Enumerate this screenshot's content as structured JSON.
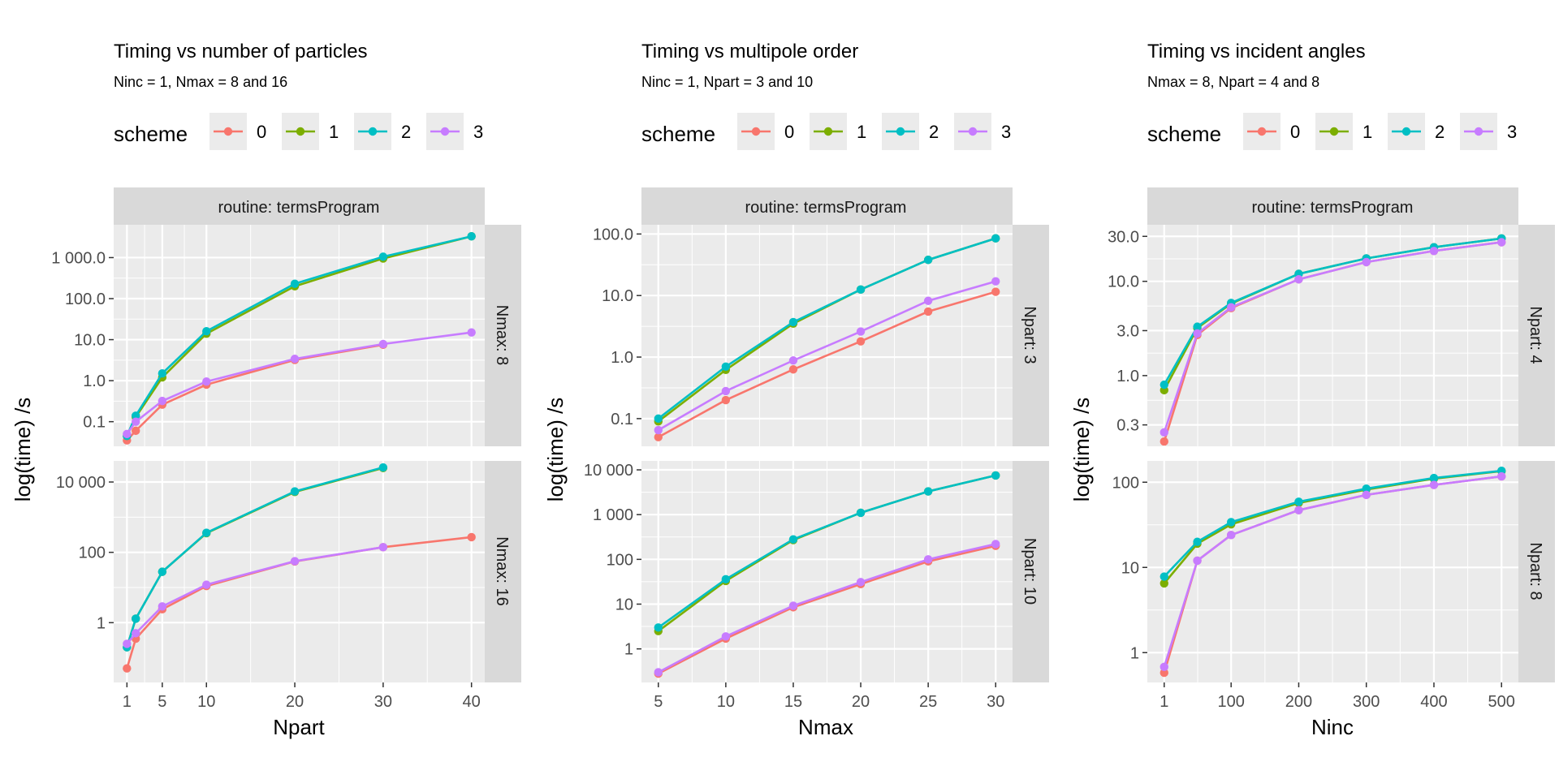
{
  "colors": {
    "scheme_0": "#F8766D",
    "scheme_1": "#7CAE00",
    "scheme_2": "#00BFC4",
    "scheme_3": "#C77CFF",
    "panel_bg": "#EBEBEB",
    "strip_bg": "#D9D9D9",
    "grid": "#FFFFFF"
  },
  "legend": {
    "title": "scheme",
    "keys": [
      "0",
      "1",
      "2",
      "3"
    ]
  },
  "chart_data": [
    {
      "type": "line",
      "title": "Timing vs number of particles",
      "subtitle": "Ninc = 1, Nmax = 8 and 16",
      "xlabel": "Npart",
      "ylabel": "log(time) /s",
      "x_scale": "linear",
      "xlim": [
        -0.5,
        41.5
      ],
      "xticks": [
        1,
        5,
        10,
        20,
        30,
        40
      ],
      "xtick_labels": [
        "1",
        "5",
        "10",
        "20",
        "30",
        "40"
      ],
      "legend_position": "top",
      "grid": true,
      "strip_top": "routine: termsProgram",
      "panels": [
        {
          "strip": "Nmax: 8",
          "y_scale": "log10",
          "ylim_log10": [
            -1.6,
            3.8
          ],
          "yticks": [
            0.1,
            1,
            10,
            100,
            1000
          ],
          "ytick_labels": [
            "0.1",
            "1.0",
            "10.0",
            "100.0",
            "1 000.0"
          ],
          "series": [
            {
              "name": "0",
              "x": [
                1,
                2,
                5,
                10,
                20,
                30
              ],
              "y": [
                0.035,
                0.06,
                0.26,
                0.8,
                3.2,
                7.5
              ]
            },
            {
              "name": "1",
              "x": [
                1,
                2,
                5,
                10,
                20,
                30,
                40
              ],
              "y": [
                0.045,
                0.13,
                1.2,
                14,
                200,
                950,
                3300
              ]
            },
            {
              "name": "2",
              "x": [
                1,
                2,
                5,
                10,
                20,
                30,
                40
              ],
              "y": [
                0.045,
                0.14,
                1.5,
                16,
                230,
                1050,
                3300
              ]
            },
            {
              "name": "3",
              "x": [
                1,
                2,
                5,
                10,
                20,
                30,
                40
              ],
              "y": [
                0.05,
                0.1,
                0.32,
                0.95,
                3.4,
                7.8,
                15
              ]
            }
          ]
        },
        {
          "strip": "Nmax: 16",
          "y_scale": "log10",
          "ylim_log10": [
            -1.7,
            4.6
          ],
          "yticks": [
            1,
            100,
            10000
          ],
          "ytick_labels": [
            "1",
            "100",
            "10 000"
          ],
          "series": [
            {
              "name": "0",
              "x": [
                1,
                2,
                5,
                10,
                20,
                30,
                40
              ],
              "y": [
                0.05,
                0.35,
                2.4,
                11,
                55,
                140,
                270
              ]
            },
            {
              "name": "1",
              "x": [
                1,
                2,
                5,
                10,
                20,
                30
              ],
              "y": [
                0.2,
                1.3,
                28,
                350,
                5200,
                25000
              ]
            },
            {
              "name": "2",
              "x": [
                1,
                2,
                5,
                10,
                20,
                30
              ],
              "y": [
                0.2,
                1.3,
                28,
                360,
                5400,
                26000
              ]
            },
            {
              "name": "3",
              "x": [
                1,
                2,
                5,
                10,
                20,
                30
              ],
              "y": [
                0.25,
                0.5,
                2.9,
                12,
                56,
                140
              ]
            }
          ]
        }
      ]
    },
    {
      "type": "line",
      "title": "Timing vs multipole order",
      "subtitle": "Ninc = 1, Npart = 3 and 10",
      "xlabel": "Nmax",
      "ylabel": "log(time) /s",
      "x_scale": "linear",
      "xlim": [
        3.75,
        31.25
      ],
      "xticks": [
        5,
        10,
        15,
        20,
        25,
        30
      ],
      "xtick_labels": [
        "5",
        "10",
        "15",
        "20",
        "25",
        "30"
      ],
      "legend_position": "top",
      "grid": true,
      "strip_top": "routine: termsProgram",
      "panels": [
        {
          "strip": "Npart: 3",
          "y_scale": "log10",
          "ylim_log10": [
            -1.45,
            2.15
          ],
          "yticks": [
            0.1,
            1,
            10,
            100
          ],
          "ytick_labels": [
            "0.1",
            "1.0",
            "10.0",
            "100.0"
          ],
          "series": [
            {
              "name": "0",
              "x": [
                5,
                10,
                15,
                20,
                25,
                30
              ],
              "y": [
                0.05,
                0.2,
                0.63,
                1.8,
                5.5,
                11.5
              ]
            },
            {
              "name": "1",
              "x": [
                5,
                10,
                15,
                20,
                25,
                30
              ],
              "y": [
                0.09,
                0.62,
                3.5,
                12.5,
                38,
                85
              ]
            },
            {
              "name": "2",
              "x": [
                5,
                10,
                15,
                20,
                25,
                30
              ],
              "y": [
                0.1,
                0.7,
                3.7,
                12.5,
                38,
                85
              ]
            },
            {
              "name": "3",
              "x": [
                5,
                10,
                15,
                20,
                25,
                30
              ],
              "y": [
                0.065,
                0.28,
                0.88,
                2.6,
                8.2,
                17
              ]
            }
          ]
        },
        {
          "strip": "Npart: 10",
          "y_scale": "log10",
          "ylim_log10": [
            -0.75,
            4.2
          ],
          "yticks": [
            1,
            10,
            100,
            1000,
            10000
          ],
          "ytick_labels": [
            "1",
            "10",
            "100",
            "1 000",
            "10 000"
          ],
          "series": [
            {
              "name": "0",
              "x": [
                5,
                10,
                15,
                20,
                25,
                30
              ],
              "y": [
                0.28,
                1.7,
                8.5,
                28,
                90,
                200
              ]
            },
            {
              "name": "1",
              "x": [
                5,
                10,
                15,
                20,
                25,
                30
              ],
              "y": [
                2.5,
                33,
                270,
                1100,
                3300,
                7500
              ]
            },
            {
              "name": "2",
              "x": [
                5,
                10,
                15,
                20,
                25,
                30
              ],
              "y": [
                3,
                36,
                280,
                1100,
                3300,
                7500
              ]
            },
            {
              "name": "3",
              "x": [
                5,
                10,
                15,
                20,
                25,
                30
              ],
              "y": [
                0.3,
                1.9,
                9.2,
                31,
                100,
                220
              ]
            }
          ]
        }
      ]
    },
    {
      "type": "line",
      "title": "Timing vs incident angles",
      "subtitle": "Nmax = 8, Npart = 4 and 8",
      "xlabel": "Ninc",
      "ylabel": "log(time) /s",
      "x_scale": "linear",
      "xlim": [
        -23.95,
        524.95
      ],
      "xticks": [
        1,
        100,
        200,
        300,
        400,
        500
      ],
      "xtick_labels": [
        "1",
        "100",
        "200",
        "300",
        "400",
        "500"
      ],
      "legend_position": "top",
      "grid": true,
      "strip_top": "routine: termsProgram",
      "panels": [
        {
          "strip": "Npart: 4",
          "y_scale": "log10",
          "ylim_log10": [
            -0.75,
            1.6
          ],
          "yticks": [
            0.3,
            1,
            3,
            10,
            30
          ],
          "ytick_labels": [
            "0.3",
            "1.0",
            "3.0",
            "10.0",
            "30.0"
          ],
          "series": [
            {
              "name": "0",
              "x": [
                1,
                50,
                100,
                200,
                300,
                400,
                500
              ],
              "y": [
                0.2,
                2.7,
                5.2,
                10.5,
                16,
                21,
                26
              ]
            },
            {
              "name": "1",
              "x": [
                1,
                50,
                100,
                200,
                300,
                400,
                500
              ],
              "y": [
                0.7,
                3.2,
                5.8,
                12,
                17.5,
                23,
                28.5
              ]
            },
            {
              "name": "2",
              "x": [
                1,
                50,
                100,
                200,
                300,
                400,
                500
              ],
              "y": [
                0.8,
                3.3,
                5.9,
                12,
                17.5,
                23,
                28.5
              ]
            },
            {
              "name": "3",
              "x": [
                1,
                50,
                100,
                200,
                300,
                400,
                500
              ],
              "y": [
                0.25,
                2.8,
                5.3,
                10.5,
                16,
                21,
                26
              ]
            }
          ]
        },
        {
          "strip": "Npart: 8",
          "y_scale": "log10",
          "ylim_log10": [
            -0.35,
            2.25
          ],
          "yticks": [
            1,
            10,
            100
          ],
          "ytick_labels": [
            "1",
            "10",
            "100"
          ],
          "series": [
            {
              "name": "0",
              "x": [
                1,
                50,
                100,
                200,
                300,
                400,
                500
              ],
              "y": [
                0.58,
                12,
                24,
                47,
                71,
                93,
                117
              ]
            },
            {
              "name": "1",
              "x": [
                1,
                50,
                100,
                200,
                300,
                400,
                500
              ],
              "y": [
                6.5,
                19,
                32,
                57,
                82,
                110,
                135
              ]
            },
            {
              "name": "2",
              "x": [
                1,
                50,
                100,
                200,
                300,
                400,
                500
              ],
              "y": [
                7.8,
                20,
                34,
                59,
                84,
                112,
                136
              ]
            },
            {
              "name": "3",
              "x": [
                1,
                50,
                100,
                200,
                300,
                400,
                500
              ],
              "y": [
                0.68,
                12,
                24,
                47,
                71,
                93,
                117
              ]
            }
          ]
        }
      ]
    }
  ]
}
